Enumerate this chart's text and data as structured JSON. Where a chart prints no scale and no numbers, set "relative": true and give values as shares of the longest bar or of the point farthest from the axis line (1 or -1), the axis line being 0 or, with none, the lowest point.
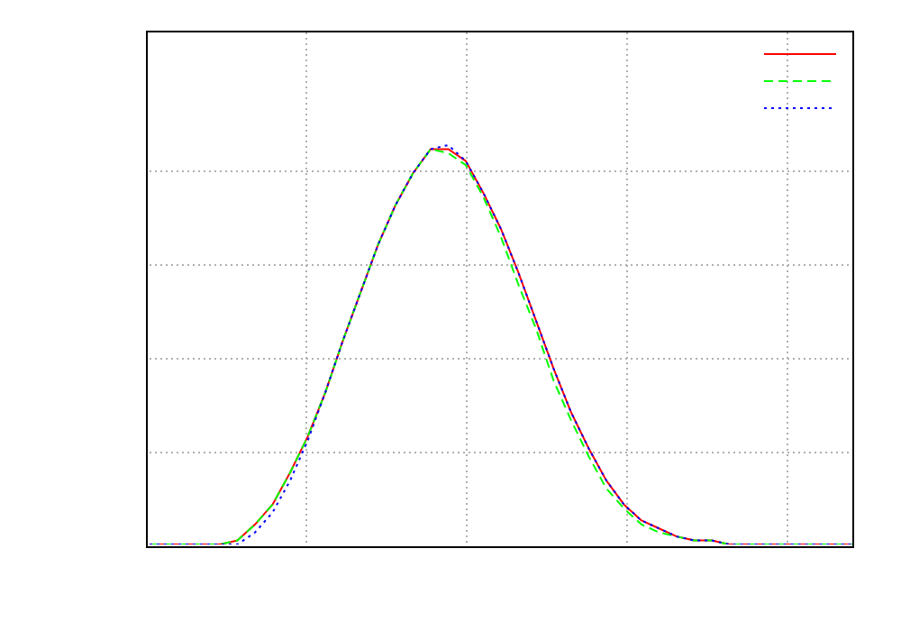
{
  "chart_data": {
    "type": "line",
    "relative": true,
    "grid": true,
    "categories": [
      null,
      null,
      null,
      null,
      null,
      null,
      null,
      null,
      null,
      null,
      null,
      null,
      null,
      null,
      null,
      null,
      null,
      null,
      null,
      null,
      null,
      null,
      null,
      null,
      null,
      null,
      null,
      null,
      null,
      null,
      null,
      null,
      null,
      null,
      null,
      null,
      null,
      null,
      null,
      null,
      null
    ],
    "series": [
      {
        "color": "#ff0000",
        "line_style": "solid",
        "values": [
          0,
          0,
          0,
          0,
          0,
          0.01,
          0.05,
          0.1,
          0.18,
          0.27,
          0.38,
          0.51,
          0.63,
          0.75,
          0.85,
          0.93,
          0.99,
          0.99,
          0.96,
          0.88,
          0.79,
          0.68,
          0.56,
          0.44,
          0.33,
          0.24,
          0.16,
          0.1,
          0.06,
          0.04,
          0.02,
          0.01,
          0.01,
          0,
          0,
          0,
          0,
          0,
          0,
          0,
          0
        ]
      },
      {
        "color": "#00ff00",
        "line_style": "dashed",
        "values": [
          0,
          0,
          0,
          0,
          0,
          0.01,
          0.05,
          0.1,
          0.18,
          0.27,
          0.38,
          0.51,
          0.63,
          0.75,
          0.85,
          0.93,
          0.99,
          0.98,
          0.95,
          0.87,
          0.77,
          0.65,
          0.54,
          0.41,
          0.31,
          0.22,
          0.14,
          0.09,
          0.05,
          0.03,
          0.02,
          0.01,
          0.01,
          0,
          0,
          0,
          0,
          0,
          0,
          0,
          0
        ]
      },
      {
        "color": "#0000ff",
        "line_style": "dotted",
        "values": [
          0,
          0,
          0,
          0,
          0,
          0,
          0.03,
          0.08,
          0.16,
          0.26,
          0.38,
          0.51,
          0.63,
          0.75,
          0.85,
          0.93,
          0.99,
          1,
          0.96,
          0.88,
          0.79,
          0.68,
          0.56,
          0.44,
          0.33,
          0.24,
          0.16,
          0.1,
          0.06,
          0.04,
          0.02,
          0.01,
          0.01,
          0,
          0,
          0,
          0,
          0,
          0,
          0,
          0
        ]
      }
    ]
  }
}
